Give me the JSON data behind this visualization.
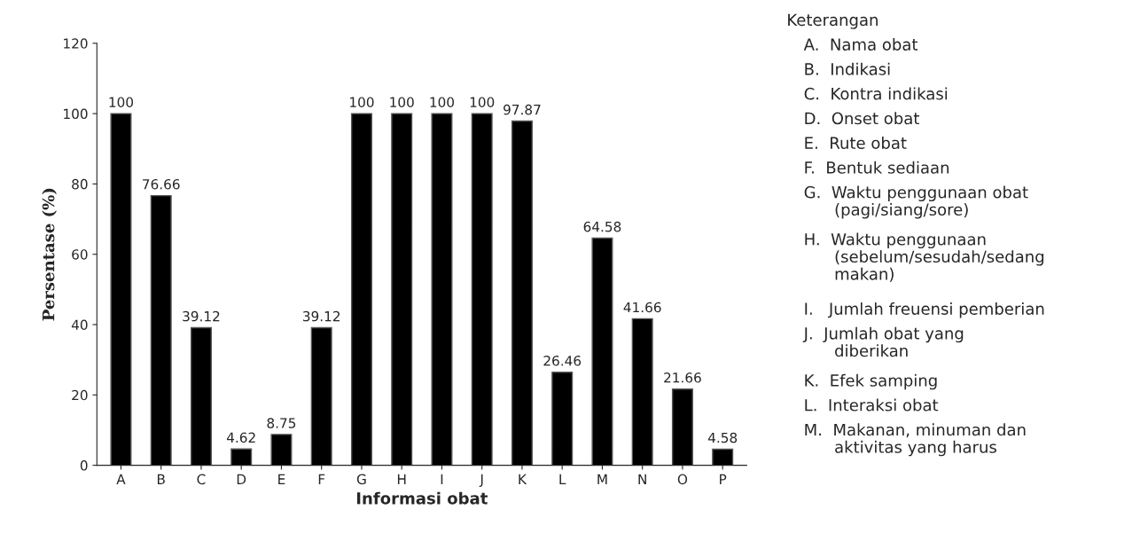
{
  "chart_data": {
    "type": "bar",
    "xlabel": "Informasi obat",
    "ylabel": "Persentase (%)",
    "categories": [
      "A",
      "B",
      "C",
      "D",
      "E",
      "F",
      "G",
      "H",
      "I",
      "J",
      "K",
      "L",
      "M",
      "N",
      "O",
      "P"
    ],
    "values": [
      100,
      76.66,
      39.12,
      4.62,
      8.75,
      39.12,
      100,
      100,
      100,
      100,
      97.87,
      26.46,
      64.58,
      41.66,
      21.66,
      4.58
    ],
    "color": "#000000",
    "data_labels": true,
    "ylim": [
      0,
      120
    ],
    "yticks": [
      0,
      20,
      40,
      60,
      80,
      100,
      120
    ],
    "grid": false,
    "annotations": [
      "Keterangan",
      "A.  Nama obat",
      "B.  Indikasi",
      "C.  Kontra indikasi",
      "D.  Onset obat",
      "E.  Rute obat",
      "F.  Bentuk sediaan",
      "G.  Waktu penggunaan obat\n      (pagi/siang/sore)",
      "H.  Waktu penggunaan\n      (sebelum/sesudah/sedang\n      makan)",
      "I.   Jumlah freuensi pemberian",
      "J.  Jumlah obat yang\n      diberikan",
      "K.  Efek samping",
      "L.  Interaksi obat",
      "M.  Makanan, minuman dan\n      aktivitas yang harus"
    ]
  }
}
